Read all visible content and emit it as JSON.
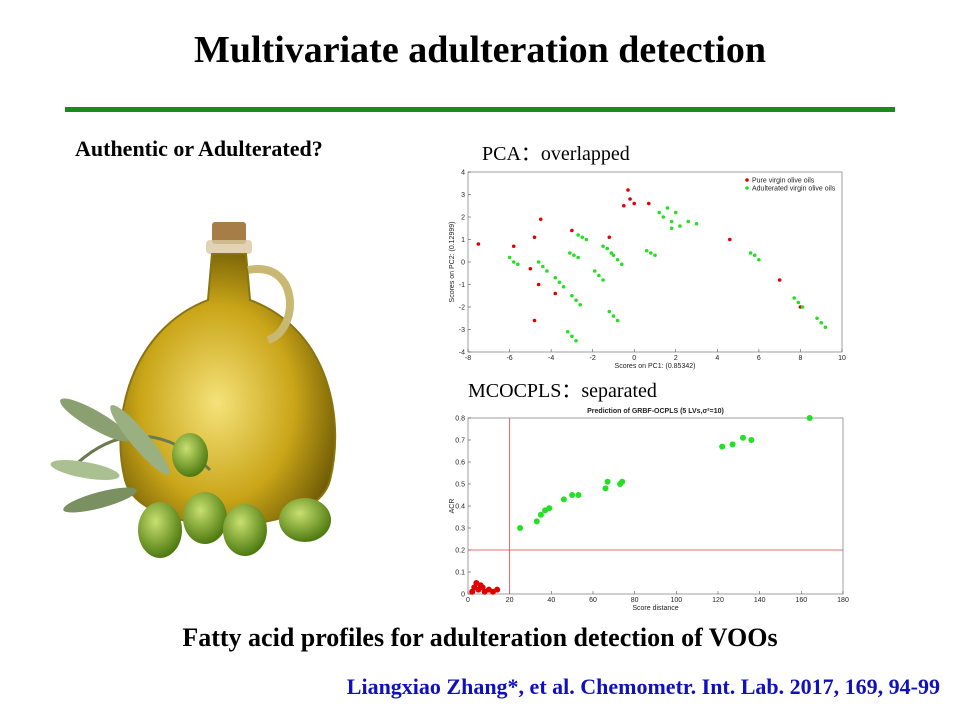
{
  "title": "Multivariate adulteration detection",
  "question": "Authentic or Adulterated?",
  "caption": "Fatty acid profiles for adulteration detection of VOOs",
  "citation": "Liangxiao Zhang*, et al. Chemometr. Int. Lab. 2017, 169, 94-99",
  "chart_data": [
    {
      "type": "scatter",
      "subtitle": "PCA：overlapped",
      "x_label": "Scores on PC1: (0.85342)",
      "y_label": "Scores on PC2: (0.12999)",
      "xlim": [
        -8,
        10
      ],
      "xticks": [
        -8,
        -6,
        -4,
        -2,
        0,
        2,
        4,
        6,
        8,
        10
      ],
      "ylim": [
        -4,
        4
      ],
      "yticks": [
        -4,
        -3,
        -2,
        -1,
        0,
        1,
        2,
        3,
        4
      ],
      "legend": "upper right",
      "series": [
        {
          "name": "Pure virgin olive oils",
          "color": "#e00000",
          "x": [
            -7.5,
            -5.8,
            -5,
            -4.8,
            -4.5,
            -4.6,
            -3.8,
            -3,
            -1.2,
            -0.5,
            -0.3,
            -0.2,
            0,
            0.7,
            4.6,
            7,
            8,
            -4.8
          ],
          "values": [
            0.8,
            0.7,
            -0.3,
            1.1,
            1.9,
            -1,
            -1.4,
            1.4,
            1.1,
            2.5,
            3.2,
            2.8,
            2.6,
            2.6,
            1,
            -0.8,
            -2,
            -2.6
          ]
        },
        {
          "name": "Adulterated virgin olive oils",
          "color": "#22e022",
          "x": [
            -6,
            -5.8,
            -5.6,
            -4.6,
            -4.4,
            -4.2,
            -3.8,
            -3.6,
            -3.4,
            -3.1,
            -2.9,
            -2.7,
            -2.7,
            -2.5,
            -2.3,
            -3,
            -2.8,
            -2.6,
            -3.2,
            -3,
            -2.8,
            -1.5,
            -1.3,
            -1.1,
            -1.9,
            -1.7,
            -1.5,
            -1,
            -0.8,
            -0.6,
            -1.2,
            -1,
            -0.8,
            0.6,
            0.8,
            1,
            1.2,
            1.4,
            1.6,
            1.8,
            2,
            2.2,
            2.6,
            3,
            1.8,
            5.6,
            5.8,
            6,
            7.7,
            7.9,
            8.1,
            8.8,
            9,
            9.2
          ],
          "values": [
            0.2,
            0,
            -0.1,
            0,
            -0.2,
            -0.4,
            -0.7,
            -0.9,
            -1.1,
            0.4,
            0.3,
            0.2,
            1.2,
            1.1,
            1,
            -1.5,
            -1.7,
            -1.9,
            -3.1,
            -3.3,
            -3.5,
            0.7,
            0.6,
            0.4,
            -0.4,
            -0.6,
            -0.8,
            0.3,
            0.1,
            -0.1,
            -2.2,
            -2.4,
            -2.6,
            0.5,
            0.4,
            0.3,
            2.2,
            2,
            2.4,
            1.8,
            2.2,
            1.6,
            1.8,
            1.7,
            1.5,
            0.4,
            0.3,
            0.1,
            -1.6,
            -1.8,
            -2,
            -2.5,
            -2.7,
            -2.9
          ]
        }
      ]
    },
    {
      "type": "scatter",
      "subtitle": "MCOCPLS：separated",
      "title": "Prediction of GRBF-OCPLS (5 LVs,σ²=10)",
      "x_label": "Score distance",
      "y_label": "ACR",
      "xlim": [
        0,
        180
      ],
      "xticks": [
        0,
        20,
        40,
        60,
        80,
        100,
        120,
        140,
        160,
        180
      ],
      "ylim": [
        0,
        0.8
      ],
      "yticks": [
        0,
        0.1,
        0.2,
        0.3,
        0.4,
        0.5,
        0.6,
        0.7,
        0.8
      ],
      "cutoff_x": 20,
      "cutoff_y": 0.2,
      "cutoff_color": "#e04040",
      "series": [
        {
          "color": "#22e022",
          "x": [
            25,
            33,
            35,
            37,
            39,
            46,
            50,
            53,
            66,
            67,
            73,
            74,
            122,
            127,
            132,
            136,
            164
          ],
          "values": [
            0.3,
            0.33,
            0.36,
            0.38,
            0.39,
            0.43,
            0.45,
            0.45,
            0.48,
            0.51,
            0.5,
            0.51,
            0.67,
            0.68,
            0.71,
            0.7,
            0.8
          ]
        },
        {
          "color": "#e00000",
          "x": [
            2,
            3,
            4,
            5,
            6,
            7,
            8,
            10,
            12,
            14
          ],
          "values": [
            0.01,
            0.03,
            0.05,
            0.02,
            0.04,
            0.03,
            0.01,
            0.02,
            0.01,
            0.02
          ]
        }
      ]
    }
  ]
}
